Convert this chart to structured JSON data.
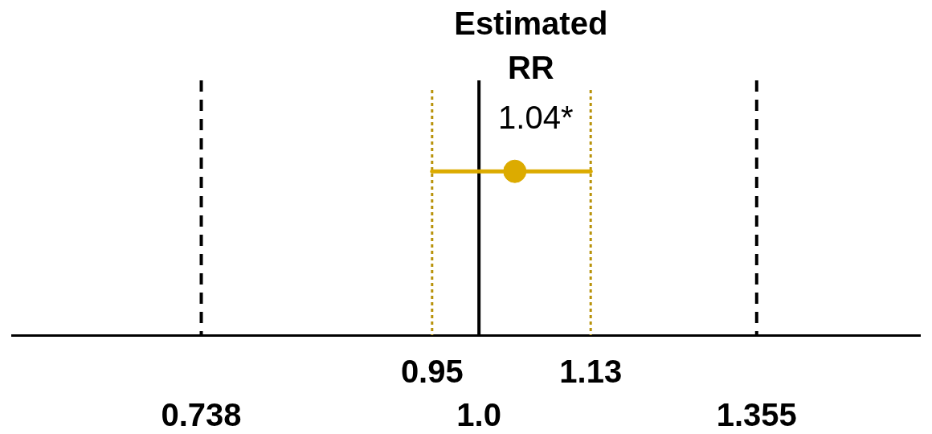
{
  "chart_data": {
    "type": "scatter",
    "orientation": "horizontal",
    "title": "Estimated RR",
    "categories": [
      null
    ],
    "log": "x",
    "xlim": [
      0.6,
      1.62
    ],
    "xticks": [
      0.738,
      {
        "value": 1,
        "label": "1.0"
      },
      1.355
    ],
    "grid": false,
    "marker": "circle",
    "series": [
      {
        "color": "#dcab00",
        "values": [
          1.04
        ],
        "errors": [
          [
            0.95,
            1.13
          ]
        ],
        "value_labels": [
          "1.04*"
        ]
      }
    ],
    "ref_lines": [
      {
        "axis": "x",
        "value": 0.738,
        "color": "#000000",
        "line_style": "dashed"
      },
      {
        "axis": "x",
        "value": 1,
        "color": "#000000",
        "line_style": "solid"
      },
      {
        "axis": "x",
        "value": 1.355,
        "color": "#000000",
        "line_style": "dashed"
      },
      {
        "axis": "x",
        "value": 0.95,
        "label": "0.95",
        "color": "#b8920a",
        "line_style": "dotted"
      },
      {
        "axis": "x",
        "value": 1.13,
        "label": "1.13",
        "color": "#b8920a",
        "line_style": "dotted"
      }
    ]
  }
}
